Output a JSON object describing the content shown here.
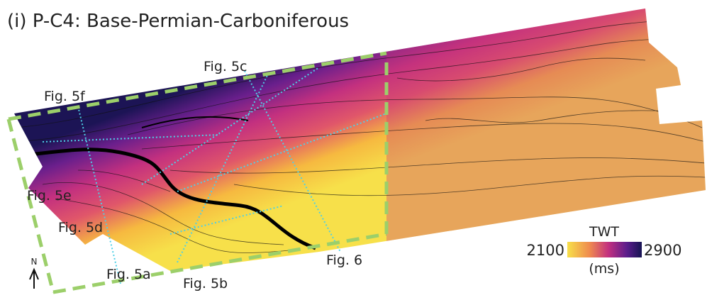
{
  "title": "(i) P-C4: Base-Permian-Carboniferous",
  "labels": [
    "Fig. 5c",
    "Fig. 5f",
    "Fig. 5e",
    "Fig. 5d",
    "Fig. 5a",
    "Fig. 5b",
    "Fig. 6"
  ],
  "legend": {
    "title": "TWT",
    "min": 2100,
    "max": 2900,
    "unit": "(ms)"
  },
  "north": "N"
}
